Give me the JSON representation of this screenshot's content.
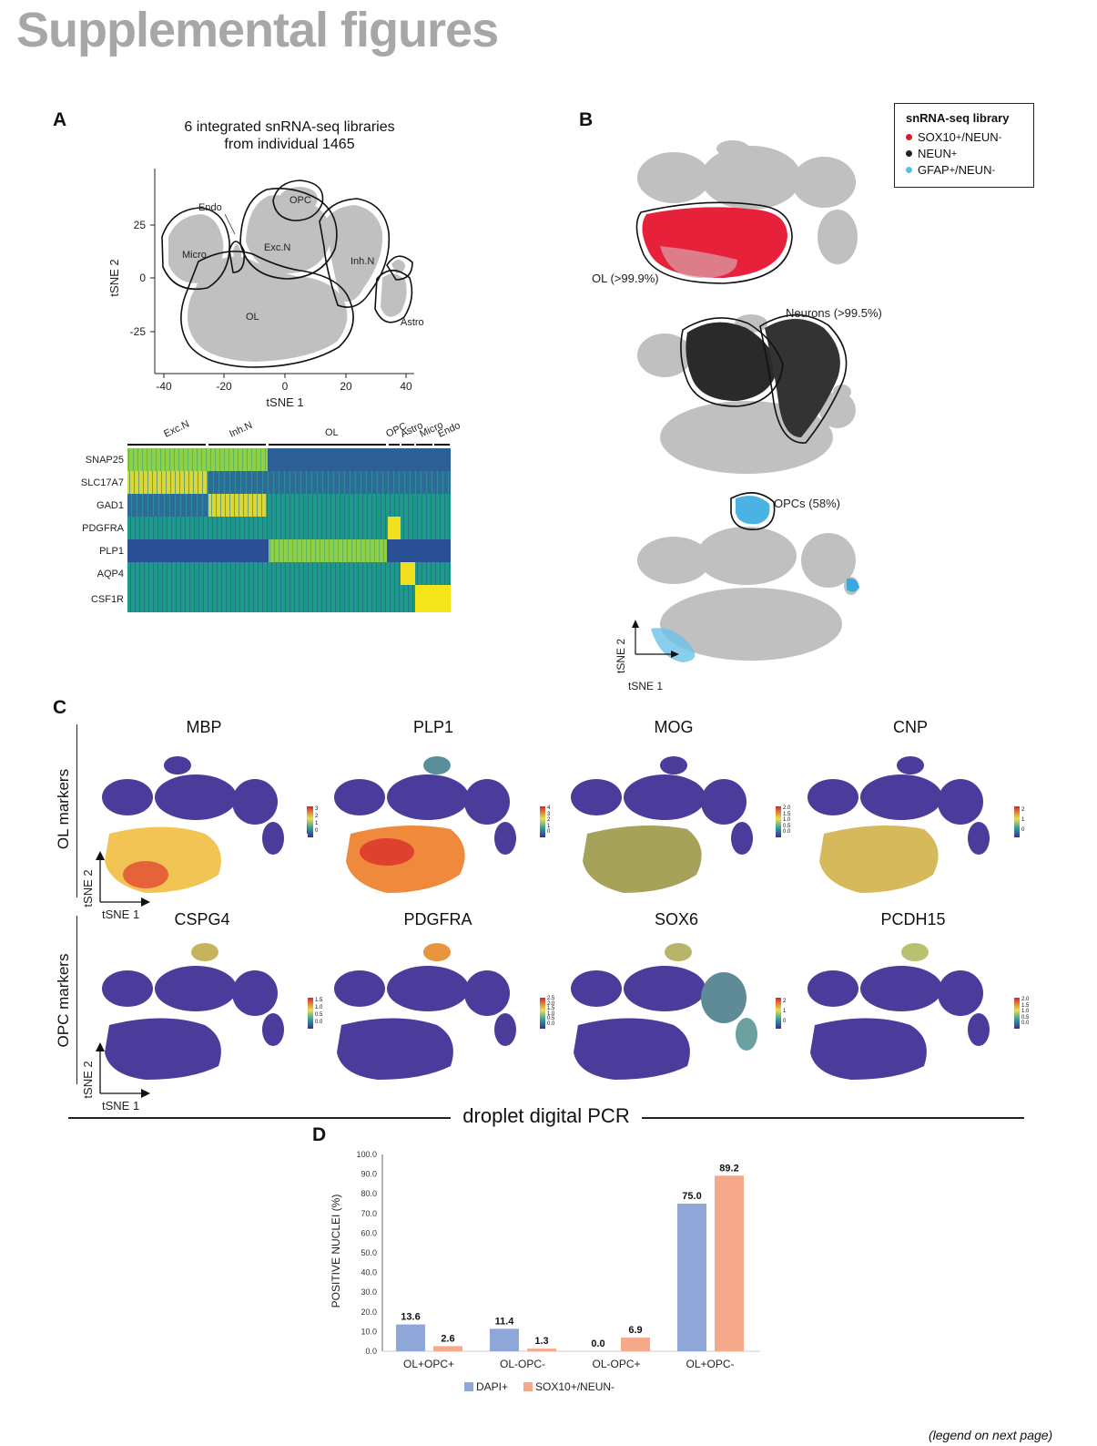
{
  "page": {
    "title": "Supplemental figures",
    "footnote": "(legend on next page)"
  },
  "panel_a": {
    "label": "A",
    "title_line1": "6 integrated snRNA-seq libraries",
    "title_line2": "from individual 1465",
    "xlabel": "tSNE 1",
    "ylabel": "tSNE 2",
    "xticks": [
      "-40",
      "-20",
      "0",
      "20",
      "40"
    ],
    "yticks": [
      "25",
      "0",
      "-25"
    ],
    "clusters": [
      "Endo",
      "OPC",
      "Micro",
      "Exc.N",
      "Inh.N",
      "OL",
      "Astro"
    ],
    "heatmap": {
      "groups": [
        "Exc.N",
        "Inh.N",
        "OL",
        "OPC",
        "Astro",
        "Micro",
        "Endo"
      ],
      "genes": [
        "SNAP25",
        "SLC17A7",
        "GAD1",
        "PDGFRA",
        "PLP1",
        "AQP4",
        "CSF1R"
      ]
    }
  },
  "panel_b": {
    "label": "B",
    "legend_title": "snRNA-seq library",
    "legend": [
      {
        "name": "SOX10",
        "sup": "+",
        "rest": "/NEUN",
        "sup2": "-",
        "color": "#e41a2b"
      },
      {
        "name": "NEUN",
        "sup": "+",
        "rest": "",
        "sup2": "",
        "color": "#222222"
      },
      {
        "name": "GFAP",
        "sup": "+",
        "rest": "/NEUN",
        "sup2": "-",
        "color": "#5bbfe6"
      }
    ],
    "ol_label": "OL (>99.9%)",
    "neurons_label": "Neurons (>99.5%)",
    "opc_label": "OPCs (58%)",
    "xlabel": "tSNE 1",
    "ylabel": "tSNE 2"
  },
  "panel_c": {
    "label": "C",
    "row_ol": "OL markers",
    "row_opc": "OPC markers",
    "xlabel": "tSNE 1",
    "ylabel": "tSNE 2",
    "genes_row1": [
      {
        "name": "MBP",
        "scale": [
          "3",
          "2",
          "1",
          "0"
        ]
      },
      {
        "name": "PLP1",
        "scale": [
          "4",
          "3",
          "2",
          "1",
          "0"
        ]
      },
      {
        "name": "MOG",
        "scale": [
          "2.0",
          "1.5",
          "1.0",
          "0.5",
          "0.0"
        ]
      },
      {
        "name": "CNP",
        "scale": [
          "2",
          "1",
          "0"
        ]
      }
    ],
    "genes_row2": [
      {
        "name": "CSPG4",
        "scale": [
          "1.5",
          "1.0",
          "0.5",
          "0.0"
        ]
      },
      {
        "name": "PDGFRA",
        "scale": [
          "2.5",
          "2.0",
          "1.5",
          "1.0",
          "0.5",
          "0.0"
        ]
      },
      {
        "name": "SOX6",
        "scale": [
          "2",
          "1",
          "0"
        ]
      },
      {
        "name": "PCDH15",
        "scale": [
          "2.0",
          "1.5",
          "1.0",
          "0.5",
          "0.0"
        ]
      }
    ]
  },
  "divider_title": "droplet digital PCR",
  "panel_d": {
    "label": "D",
    "ylabel": "POSITIVE NUCLEI (%)",
    "yticks": [
      "100.0",
      "90.0",
      "80.0",
      "70.0",
      "60.0",
      "50.0",
      "40.0",
      "30.0",
      "20.0",
      "10.0",
      "0.0"
    ]
  },
  "chart_data": {
    "type": "bar",
    "categories": [
      "OL+OPC+",
      "OL-OPC-",
      "OL-OPC+",
      "OL+OPC-"
    ],
    "series": [
      {
        "name": "DAPI+",
        "values": [
          13.6,
          11.4,
          0.0,
          75.0
        ],
        "labels": [
          "13.6",
          "11.4",
          "0.0",
          "75.0"
        ],
        "color": "#8fa6d8"
      },
      {
        "name": "SOX10+/NEUN-",
        "values": [
          2.6,
          1.3,
          6.9,
          89.2
        ],
        "labels": [
          "2.6",
          "1.3",
          "6.9",
          "89.2"
        ],
        "color": "#f6a88a"
      }
    ],
    "ylabel": "POSITIVE NUCLEI (%)",
    "ylim": [
      0,
      100
    ],
    "grid": false,
    "legend": "bottom"
  }
}
